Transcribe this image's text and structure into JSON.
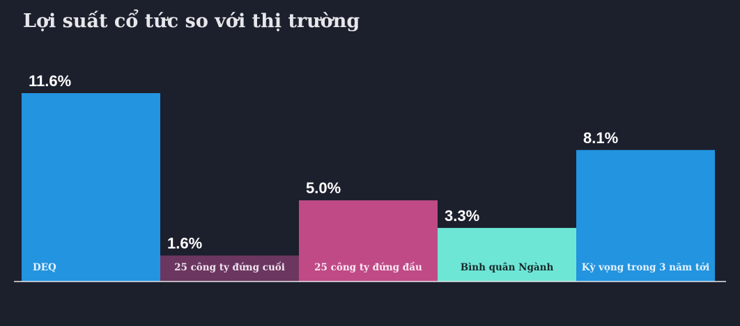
{
  "chart_data": {
    "type": "bar",
    "title": "Lợi suất cổ tức so với thị trường",
    "categories": [
      "DEQ",
      "25 công ty đứng cuối",
      "25 công ty đứng đầu",
      "Bình quân Ngành",
      "Kỳ vọng trong 3 năm tới"
    ],
    "values": [
      11.6,
      1.6,
      5.0,
      3.3,
      8.1
    ],
    "value_labels": [
      "11.6%",
      "1.6%",
      "5.0%",
      "3.3%",
      "8.1%"
    ],
    "colors": [
      "#2394e0",
      "#6b3660",
      "#bf4a86",
      "#6de6d6",
      "#2394e0"
    ],
    "category_label_colors": [
      "#e6f2fc",
      "#f0e4ee",
      "#ffe8f3",
      "#1a2a2a",
      "#e6f2fc"
    ],
    "ylim": [
      0,
      11.6
    ],
    "grid": false,
    "legend": "none"
  }
}
